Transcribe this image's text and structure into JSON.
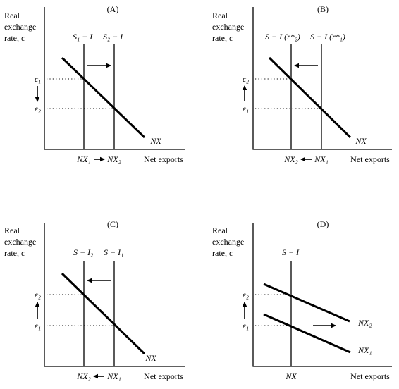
{
  "axis_labels": {
    "y_line1": "Real",
    "y_line2": "exchange",
    "y_line3": "rate, ϵ",
    "x": "Net exports"
  },
  "panels": [
    {
      "title": "(A)",
      "curve_labels": [
        "S₁ − I",
        "S₂ − I"
      ],
      "y_ticks": [
        "ϵ₁",
        "ϵ₂"
      ],
      "x_ticks": [
        "NX₁",
        "NX₂"
      ],
      "demand_label": "NX"
    },
    {
      "title": "(B)",
      "curve_labels": [
        "S − I (r*₂)",
        "S − I (r*₁)"
      ],
      "y_ticks": [
        "ϵ₂",
        "ϵ₁"
      ],
      "x_ticks": [
        "NX₂",
        "NX₁"
      ],
      "demand_label": "NX"
    },
    {
      "title": "(C)",
      "curve_labels": [
        "S − I₂",
        "S − I₁"
      ],
      "y_ticks": [
        "ϵ₂",
        "ϵ₁"
      ],
      "x_ticks": [
        "NX₂",
        "NX₁"
      ],
      "demand_label": "NX"
    },
    {
      "title": "(D)",
      "curve_labels": [
        "S − I"
      ],
      "y_ticks": [
        "ϵ₂",
        "ϵ₁"
      ],
      "x_ticks": [
        "NX"
      ],
      "demand_labels": [
        "NX₂",
        "NX₁"
      ]
    }
  ]
}
